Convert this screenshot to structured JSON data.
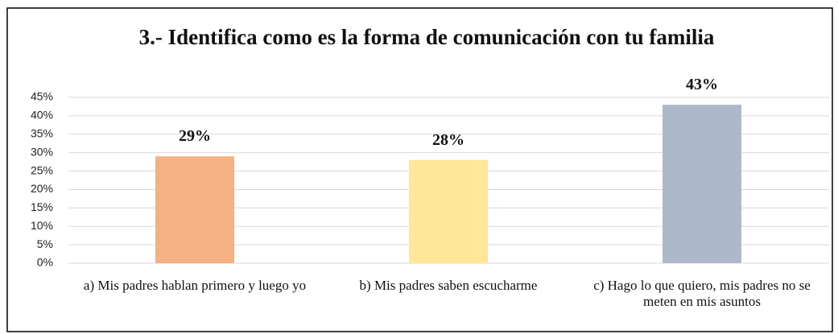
{
  "chart_data": {
    "type": "bar",
    "title": "3.- Identifica como es la forma de comunicación con tu familia",
    "categories": [
      "a) Mis padres hablan primero y luego yo",
      "b) Mis padres saben escucharme",
      "c) Hago lo que quiero, mis padres no se meten en mis asuntos"
    ],
    "values": [
      29,
      28,
      43
    ],
    "value_labels": [
      "29%",
      "28%",
      "43%"
    ],
    "colors": [
      "#f4b183",
      "#ffe699",
      "#adb9ca"
    ],
    "ylim": [
      0,
      45
    ],
    "yticks": [
      {
        "value": 0,
        "label": "0%"
      },
      {
        "value": 5,
        "label": "5%"
      },
      {
        "value": 10,
        "label": "10%"
      },
      {
        "value": 15,
        "label": "15%"
      },
      {
        "value": 20,
        "label": "20%"
      },
      {
        "value": 25,
        "label": "25%"
      },
      {
        "value": 30,
        "label": "30%"
      },
      {
        "value": 35,
        "label": "35%"
      },
      {
        "value": 40,
        "label": "40%"
      },
      {
        "value": 45,
        "label": "45%"
      }
    ],
    "grid": true
  }
}
